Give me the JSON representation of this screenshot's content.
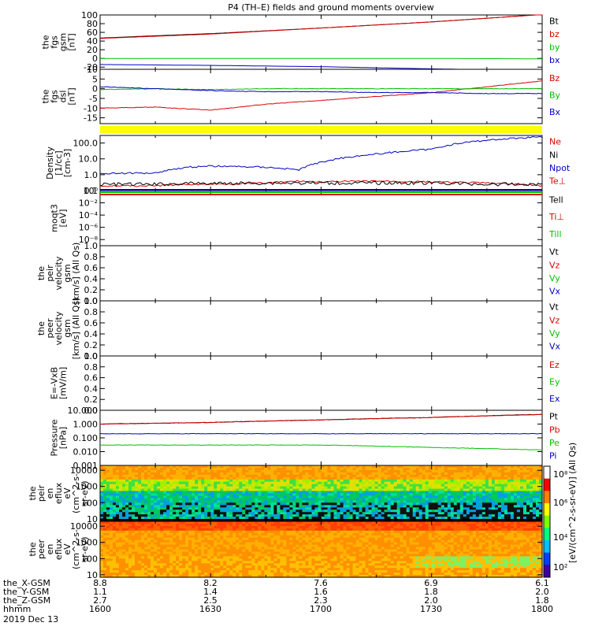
{
  "chart_data": {
    "title": "P4 (TH–E) fields and ground moments overview",
    "date_label": "2019 Dec 13",
    "colors": {
      "black": "#000000",
      "red": "#dd0000",
      "green": "#00c000",
      "blue": "#0000c8",
      "yellow": "#ffff00"
    },
    "panels": [
      {
        "id": "fgs_gsm",
        "type": "line",
        "ylabel_lines": [
          "the",
          "fgs",
          "gsm",
          "[nT]"
        ],
        "ylim": [
          -25,
          100
        ],
        "yticks": [
          -20,
          0,
          20,
          40,
          60,
          80,
          100
        ],
        "tick_labels": [
          "-20",
          "0",
          "20",
          "40",
          "60",
          "80",
          "100"
        ],
        "x_hours": [
          16.0,
          16.5,
          17.0,
          17.5,
          18.0
        ],
        "series": [
          {
            "name": "Bt",
            "color": "black",
            "values": [
              47,
              57,
              70,
              84,
              101
            ]
          },
          {
            "name": "bz",
            "color": "red",
            "values": [
              46,
              56,
              70,
              84,
              101
            ]
          },
          {
            "name": "by",
            "color": "green",
            "values": [
              0,
              0,
              0,
              0,
              -1
            ]
          },
          {
            "name": "bx",
            "color": "blue",
            "values": [
              -14,
              -16,
              -19,
              -24,
              -28
            ]
          }
        ]
      },
      {
        "id": "fgs_dsl",
        "type": "line",
        "ylabel_lines": [
          "the",
          "fgs",
          "dsl",
          "[nT]"
        ],
        "ylim": [
          -18,
          10
        ],
        "yticks": [
          -15,
          -10,
          -5,
          0,
          5,
          10
        ],
        "tick_labels": [
          "-15",
          "-10",
          "-5",
          "0",
          "5",
          "10"
        ],
        "x_hours": [
          16.0,
          16.25,
          16.5,
          16.75,
          17.0,
          17.25,
          17.5,
          17.75,
          18.0
        ],
        "series": [
          {
            "name": "Bz",
            "color": "red",
            "values": [
              -10,
              -9.5,
              -11,
              -8,
              -6,
              -4,
              -2,
              1,
              4
            ]
          },
          {
            "name": "By",
            "color": "green",
            "values": [
              -0.5,
              0,
              -0.5,
              0,
              0,
              0,
              0,
              0,
              0
            ]
          },
          {
            "name": "Bx",
            "color": "blue",
            "values": [
              1,
              0,
              -1,
              -1.5,
              -1.5,
              -2,
              -2,
              -2.5,
              -2.5
            ]
          }
        ]
      },
      {
        "id": "density",
        "type": "line",
        "scale": "log",
        "ylabel_lines": [
          "Density",
          "[1/cc]",
          "[cm-3]"
        ],
        "ylim": [
          0.1,
          300
        ],
        "yticks": [
          0.1,
          1.0,
          10.0,
          100.0
        ],
        "tick_labels": [
          "0.1",
          "1.0",
          "10.0",
          "100.0"
        ],
        "x_hours": [
          16.0,
          16.25,
          16.4,
          16.5,
          16.75,
          16.9,
          17.0,
          17.25,
          17.5,
          17.75,
          18.0
        ],
        "series": [
          {
            "name": "Ne",
            "color": "red",
            "values": [
              0.2,
              0.2,
              0.25,
              0.25,
              0.3,
              0.4,
              0.35,
              0.4,
              0.35,
              0.3,
              0.2
            ]
          },
          {
            "name": "Ni",
            "color": "black",
            "values": [
              0.25,
              0.25,
              0.28,
              0.28,
              0.3,
              0.3,
              0.3,
              0.3,
              0.3,
              0.25,
              0.25
            ]
          },
          {
            "name": "Npot",
            "color": "blue",
            "values": [
              1.2,
              1.3,
              3.0,
              3.5,
              3.0,
              2.0,
              6.0,
              20,
              40,
              150,
              250
            ]
          },
          {
            "name": "Te⊥",
            "color": "red",
            "values": []
          }
        ]
      },
      {
        "id": "moqt3",
        "type": "line",
        "scale": "log",
        "ylabel_lines": [
          "moqt3",
          "[eV]"
        ],
        "ylim": [
          1e-09,
          1
        ],
        "yticks": [
          1,
          0.01,
          0.0001,
          1e-06,
          1e-08
        ],
        "tick_labels": [
          "10⁰",
          "10⁻²",
          "10⁻⁴",
          "10⁻⁶",
          "10⁻⁸"
        ],
        "x_hours": [
          16.0,
          16.5,
          17.0,
          17.5,
          18.0
        ],
        "series": [
          {
            "name": "Tell",
            "color": "black",
            "values": []
          },
          {
            "name": "Ti⊥",
            "color": "red",
            "values": []
          },
          {
            "name": "Till",
            "color": "green",
            "values": []
          }
        ]
      },
      {
        "id": "peir_velocity",
        "type": "line",
        "ylabel_lines": [
          "the",
          "peir",
          "velocity",
          "gsm",
          "[km/s] (All Qs)"
        ],
        "ylim": [
          0,
          1
        ],
        "yticks": [
          0,
          0.2,
          0.4,
          0.6,
          0.8,
          1.0
        ],
        "tick_labels": [
          "0.0",
          "0.2",
          "0.4",
          "0.6",
          "0.8",
          "1.0"
        ],
        "series": [
          {
            "name": "Vt",
            "color": "black",
            "values": []
          },
          {
            "name": "Vz",
            "color": "red",
            "values": []
          },
          {
            "name": "Vy",
            "color": "green",
            "values": []
          },
          {
            "name": "Vx",
            "color": "blue",
            "values": []
          }
        ]
      },
      {
        "id": "peer_velocity",
        "type": "line",
        "ylabel_lines": [
          "the",
          "peer",
          "velocity",
          "gsm",
          "[km/s] (All Qs)"
        ],
        "ylim": [
          0,
          1
        ],
        "yticks": [
          0,
          0.2,
          0.4,
          0.6,
          0.8,
          1.0
        ],
        "tick_labels": [
          "0.0",
          "0.2",
          "0.4",
          "0.6",
          "0.8",
          "1.0"
        ],
        "series": [
          {
            "name": "Vt",
            "color": "black",
            "values": []
          },
          {
            "name": "Vz",
            "color": "red",
            "values": []
          },
          {
            "name": "Vy",
            "color": "green",
            "values": []
          },
          {
            "name": "Vx",
            "color": "blue",
            "values": []
          }
        ]
      },
      {
        "id": "e_field",
        "type": "line",
        "ylabel_lines": [
          "E=-VxB",
          "[mV/m]"
        ],
        "ylim": [
          0,
          1
        ],
        "yticks": [
          0,
          0.2,
          0.4,
          0.6,
          0.8,
          1.0
        ],
        "tick_labels": [
          "0.0",
          "0.2",
          "0.4",
          "0.6",
          "0.8",
          "1.0"
        ],
        "series": [
          {
            "name": "Ez",
            "color": "red",
            "values": []
          },
          {
            "name": "Ey",
            "color": "green",
            "values": []
          },
          {
            "name": "Ex",
            "color": "blue",
            "values": []
          }
        ]
      },
      {
        "id": "pressure",
        "type": "line",
        "scale": "log",
        "ylabel_lines": [
          "Pressure",
          "[nPa]"
        ],
        "ylim": [
          0.001,
          10
        ],
        "yticks": [
          0.001,
          0.01,
          0.1,
          1.0,
          10.0
        ],
        "tick_labels": [
          "0.001",
          "0.010",
          "0.100",
          "1.000",
          "10.000"
        ],
        "x_hours": [
          16.0,
          16.5,
          17.0,
          17.5,
          18.0
        ],
        "series": [
          {
            "name": "Pt",
            "color": "black",
            "values": [
              1.0,
              1.3,
              2.0,
              3.0,
              5.0
            ]
          },
          {
            "name": "Pb",
            "color": "red",
            "values": [
              1.0,
              1.3,
              2.0,
              3.0,
              5.0
            ]
          },
          {
            "name": "Pe",
            "color": "green",
            "values": [
              0.03,
              0.03,
              0.03,
              0.02,
              0.013
            ]
          },
          {
            "name": "Pi",
            "color": "blue",
            "values": [
              0.2,
              0.2,
              0.2,
              0.2,
              0.2
            ]
          }
        ]
      },
      {
        "id": "peir_eflux",
        "type": "heatmap",
        "ylabel_lines": [
          "the",
          "peir",
          "en",
          "eflux",
          "eV",
          "(cm^2-s-",
          "sr-eV)"
        ],
        "ylim": [
          7,
          20000
        ],
        "yticks": [
          10,
          100,
          1000,
          10000
        ],
        "tick_labels": [
          "10",
          "100",
          "1000",
          "10000"
        ]
      },
      {
        "id": "peer_eflux",
        "type": "heatmap",
        "ylabel_lines": [
          "the",
          "peer",
          "en",
          "eflux",
          "eV",
          "(cm^2-s-",
          "sr-eV)"
        ],
        "ylim": [
          7,
          20000
        ],
        "yticks": [
          10,
          100,
          1000,
          10000
        ],
        "tick_labels": [
          "10",
          "100",
          "1000",
          "10000"
        ]
      }
    ],
    "colorbar": {
      "ticks": [
        "10²",
        "10⁴",
        "10⁶",
        "10⁸"
      ],
      "label": "[eV/(cm^2-s-sr-eV)] (All Qs)"
    },
    "x_axis": {
      "row_labels": [
        "the_X-GSM",
        "the_Y-GSM",
        "the_Z-GSM",
        "hhmm"
      ],
      "columns": [
        [
          "8.8",
          "1.1",
          "2.7",
          "1600"
        ],
        [
          "8.2",
          "1.4",
          "2.5",
          "1630"
        ],
        [
          "7.6",
          "1.6",
          "2.3",
          "1700"
        ],
        [
          "6.9",
          "1.8",
          "2.0",
          "1730"
        ],
        [
          "6.1",
          "2.0",
          "1.8",
          "1800"
        ]
      ]
    }
  }
}
